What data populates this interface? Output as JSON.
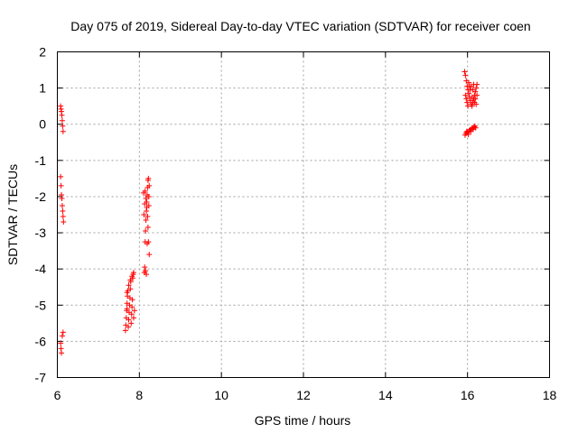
{
  "chart_data": {
    "type": "scatter",
    "title": "Day 075 of 2019, Sidereal Day-to-day VTEC variation (SDTVAR) for receiver coen",
    "xlabel": "GPS time / hours",
    "ylabel": "SDTVAR / TECUs",
    "xlim": [
      6,
      18
    ],
    "ylim": [
      -7,
      2
    ],
    "xticks": [
      6,
      8,
      10,
      12,
      14,
      16,
      18
    ],
    "yticks": [
      -7,
      -6,
      -5,
      -4,
      -3,
      -2,
      -1,
      0,
      1,
      2
    ],
    "xtick_labels": [
      "6",
      "8",
      "10",
      "12",
      "14",
      "16",
      "18"
    ],
    "ytick_labels": [
      "-7",
      "-6",
      "-5",
      "-4",
      "-3",
      "-2",
      "-1",
      "0",
      "1",
      "2"
    ],
    "grid": true,
    "marker": "+",
    "marker_color": "#ff0000",
    "series": [
      {
        "name": "SDTVAR",
        "points": [
          [
            6.08,
            0.5
          ],
          [
            6.09,
            0.42
          ],
          [
            6.1,
            0.35
          ],
          [
            6.11,
            0.25
          ],
          [
            6.12,
            0.1
          ],
          [
            6.13,
            -0.05
          ],
          [
            6.14,
            -0.2
          ],
          [
            6.08,
            -1.45
          ],
          [
            6.09,
            -1.7
          ],
          [
            6.1,
            -1.95
          ],
          [
            6.11,
            -2.05
          ],
          [
            6.12,
            -2.25
          ],
          [
            6.13,
            -2.4
          ],
          [
            6.14,
            -2.55
          ],
          [
            6.15,
            -2.7
          ],
          [
            6.08,
            -6.05
          ],
          [
            6.09,
            -6.2
          ],
          [
            6.1,
            -6.32
          ],
          [
            6.12,
            -5.85
          ],
          [
            6.14,
            -5.75
          ],
          [
            7.66,
            -5.7
          ],
          [
            7.67,
            -5.55
          ],
          [
            7.68,
            -5.35
          ],
          [
            7.69,
            -5.15
          ],
          [
            7.7,
            -4.95
          ],
          [
            7.71,
            -4.75
          ],
          [
            7.72,
            -4.6
          ],
          [
            7.73,
            -5.6
          ],
          [
            7.74,
            -5.4
          ],
          [
            7.75,
            -5.2
          ],
          [
            7.76,
            -5.0
          ],
          [
            7.77,
            -4.8
          ],
          [
            7.78,
            -4.55
          ],
          [
            7.79,
            -4.35
          ],
          [
            7.8,
            -5.5
          ],
          [
            7.81,
            -5.25
          ],
          [
            7.82,
            -5.05
          ],
          [
            7.83,
            -4.85
          ],
          [
            7.84,
            -4.25
          ],
          [
            7.85,
            -4.15
          ],
          [
            7.86,
            -4.1
          ],
          [
            7.7,
            -4.65
          ],
          [
            7.74,
            -4.45
          ],
          [
            7.78,
            -4.3
          ],
          [
            7.82,
            -4.2
          ],
          [
            7.86,
            -5.35
          ],
          [
            7.88,
            -5.15
          ],
          [
            7.7,
            -5.1
          ],
          [
            8.12,
            -4.1
          ],
          [
            8.13,
            -3.95
          ],
          [
            8.14,
            -3.25
          ],
          [
            8.15,
            -2.95
          ],
          [
            8.16,
            -2.65
          ],
          [
            8.17,
            -2.4
          ],
          [
            8.18,
            -2.15
          ],
          [
            8.19,
            -1.95
          ],
          [
            8.2,
            -1.75
          ],
          [
            8.21,
            -1.55
          ],
          [
            8.22,
            -1.5
          ],
          [
            8.14,
            -1.85
          ],
          [
            8.16,
            -2.05
          ],
          [
            8.18,
            -2.3
          ],
          [
            8.2,
            -2.55
          ],
          [
            8.22,
            -3.25
          ],
          [
            8.24,
            -3.6
          ],
          [
            8.23,
            -2.0
          ],
          [
            8.24,
            -1.7
          ],
          [
            8.15,
            -4.05
          ],
          [
            8.17,
            -4.15
          ],
          [
            8.11,
            -2.5
          ],
          [
            8.13,
            -2.2
          ],
          [
            8.19,
            -3.3
          ],
          [
            8.21,
            -2.85
          ],
          [
            8.23,
            -2.25
          ],
          [
            8.1,
            -1.9
          ],
          [
            15.93,
            1.45
          ],
          [
            15.95,
            1.35
          ],
          [
            15.97,
            1.2
          ],
          [
            15.99,
            1.05
          ],
          [
            16.01,
            0.95
          ],
          [
            16.03,
            0.85
          ],
          [
            16.05,
            0.75
          ],
          [
            16.07,
            0.65
          ],
          [
            16.09,
            0.55
          ],
          [
            16.11,
            0.5
          ],
          [
            16.13,
            0.6
          ],
          [
            16.15,
            0.7
          ],
          [
            16.17,
            0.8
          ],
          [
            16.19,
            0.9
          ],
          [
            16.21,
            1.0
          ],
          [
            16.23,
            1.1
          ],
          [
            15.95,
            0.8
          ],
          [
            15.97,
            0.7
          ],
          [
            15.99,
            0.6
          ],
          [
            16.01,
            0.5
          ],
          [
            16.03,
            1.15
          ],
          [
            16.05,
            1.05
          ],
          [
            16.07,
            0.95
          ],
          [
            16.09,
            1.05
          ],
          [
            16.11,
            0.75
          ],
          [
            16.13,
            0.95
          ],
          [
            16.15,
            1.1
          ],
          [
            16.17,
            0.6
          ],
          [
            16.19,
            0.7
          ],
          [
            16.21,
            0.55
          ],
          [
            16.23,
            0.8
          ],
          [
            15.94,
            -0.3
          ],
          [
            15.96,
            -0.25
          ],
          [
            15.98,
            -0.2
          ],
          [
            16.0,
            -0.22
          ],
          [
            16.02,
            -0.28
          ],
          [
            16.04,
            -0.18
          ],
          [
            16.06,
            -0.15
          ],
          [
            16.08,
            -0.2
          ],
          [
            16.1,
            -0.12
          ],
          [
            16.12,
            -0.1
          ],
          [
            16.14,
            -0.14
          ],
          [
            16.16,
            -0.08
          ],
          [
            16.18,
            -0.05
          ],
          [
            16.2,
            -0.1
          ]
        ]
      }
    ]
  }
}
